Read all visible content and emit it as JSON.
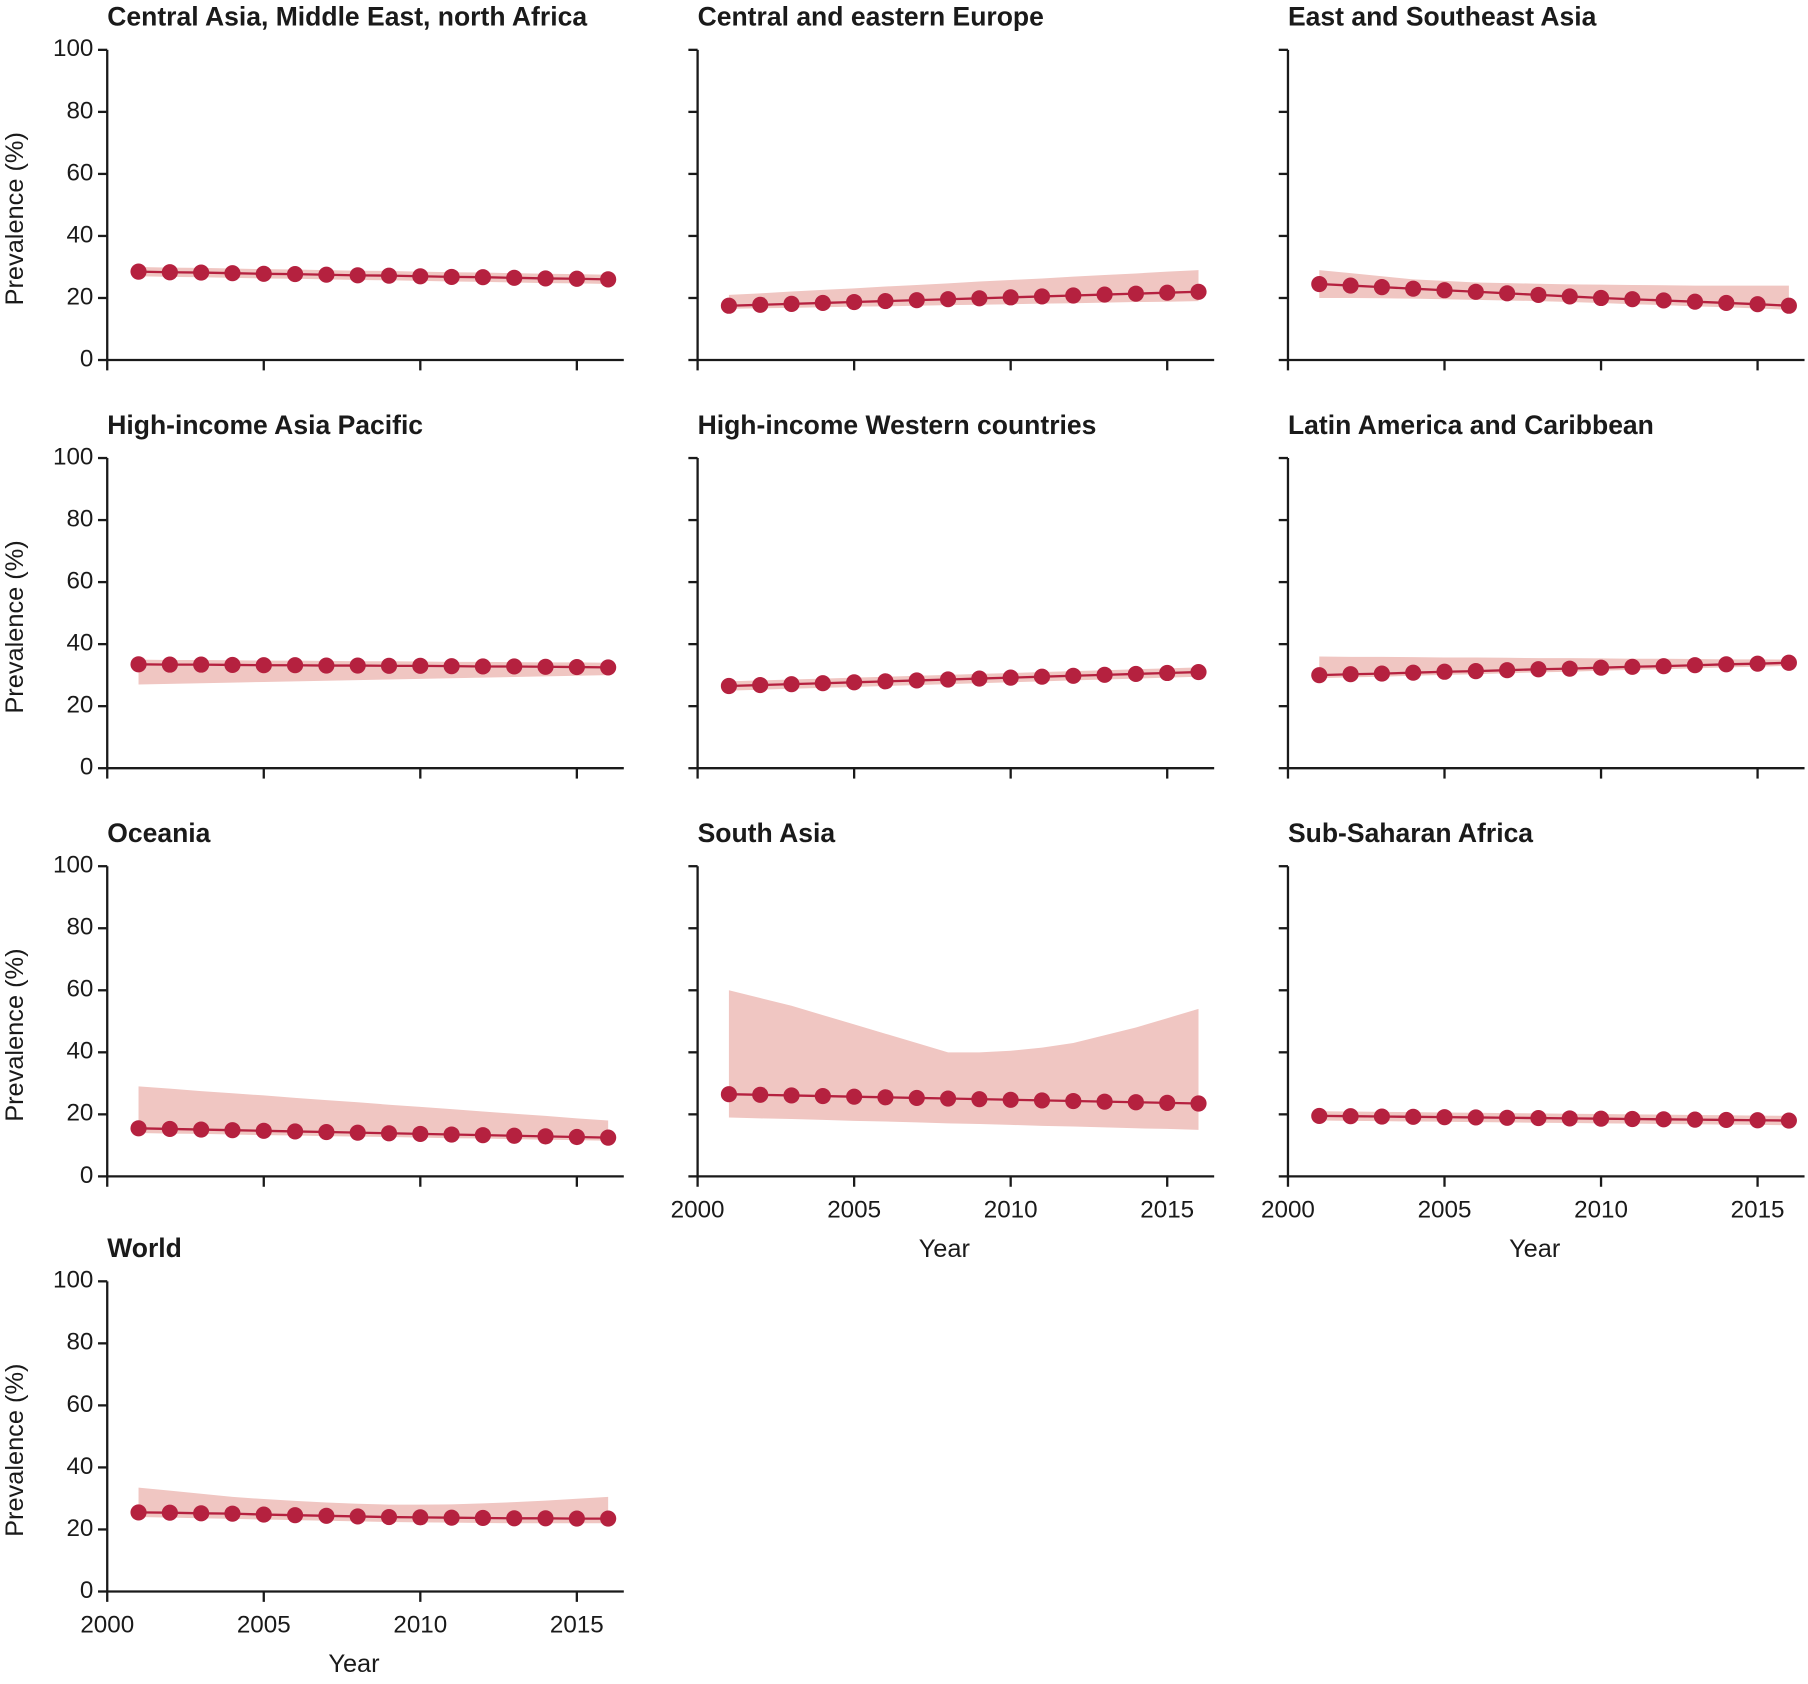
{
  "chart_data": [
    {
      "type": "line",
      "title": "Central Asia, Middle East, north Africa",
      "ylabel": "Prevalence (%)",
      "ytick_labels": true,
      "xtick_labels": false,
      "x": [
        2001,
        2002,
        2003,
        2004,
        2005,
        2006,
        2007,
        2008,
        2009,
        2010,
        2011,
        2012,
        2013,
        2014,
        2015,
        2016
      ],
      "values": [
        28.5,
        28.3,
        28.2,
        28.0,
        27.8,
        27.7,
        27.5,
        27.3,
        27.2,
        27.0,
        26.8,
        26.7,
        26.5,
        26.3,
        26.2,
        26.0
      ],
      "upper": [
        30.0,
        29.8,
        29.7,
        29.5,
        29.3,
        29.2,
        29.0,
        28.8,
        28.7,
        28.5,
        28.3,
        28.2,
        28.0,
        27.8,
        27.7,
        27.5
      ],
      "lower": [
        27.0,
        26.8,
        26.7,
        26.5,
        26.3,
        26.2,
        26.0,
        25.8,
        25.7,
        25.5,
        25.3,
        25.2,
        25.0,
        24.8,
        24.7,
        24.5
      ],
      "color": "#b5213f",
      "band_color": "#f0c6c2",
      "xlim": [
        2000,
        2016.5
      ],
      "xticks": [
        2000,
        2005,
        2010,
        2015
      ],
      "ylim": [
        0,
        100
      ],
      "yticks": [
        0,
        20,
        40,
        60,
        80,
        100
      ]
    },
    {
      "type": "line",
      "title": "Central and eastern Europe",
      "ytick_labels": false,
      "xtick_labels": false,
      "x": [
        2001,
        2002,
        2003,
        2004,
        2005,
        2006,
        2007,
        2008,
        2009,
        2010,
        2011,
        2012,
        2013,
        2014,
        2015,
        2016
      ],
      "values": [
        17.5,
        17.8,
        18.1,
        18.4,
        18.7,
        19.0,
        19.3,
        19.6,
        19.9,
        20.2,
        20.5,
        20.8,
        21.1,
        21.4,
        21.7,
        22.0
      ],
      "upper": [
        21.0,
        21.5,
        22.1,
        22.6,
        23.1,
        23.7,
        24.2,
        24.7,
        25.3,
        25.8,
        26.3,
        26.9,
        27.4,
        27.9,
        28.5,
        29.0
      ],
      "lower": [
        16.5,
        16.7,
        16.8,
        17.0,
        17.2,
        17.3,
        17.5,
        17.7,
        17.8,
        18.0,
        18.2,
        18.3,
        18.5,
        18.7,
        18.8,
        19.0
      ],
      "color": "#b5213f",
      "band_color": "#f0c6c2",
      "xlim": [
        2000,
        2016.5
      ],
      "xticks": [
        2000,
        2005,
        2010,
        2015
      ],
      "ylim": [
        0,
        100
      ],
      "yticks": [
        0,
        20,
        40,
        60,
        80,
        100
      ]
    },
    {
      "type": "line",
      "title": "East and Southeast Asia",
      "ytick_labels": false,
      "xtick_labels": false,
      "x": [
        2001,
        2002,
        2003,
        2004,
        2005,
        2006,
        2007,
        2008,
        2009,
        2010,
        2011,
        2012,
        2013,
        2014,
        2015,
        2016
      ],
      "values": [
        24.5,
        24.0,
        23.5,
        23.0,
        22.5,
        22.0,
        21.5,
        21.0,
        20.5,
        20.0,
        19.6,
        19.2,
        18.8,
        18.4,
        18.0,
        17.5
      ],
      "upper": [
        29.0,
        28.0,
        27.0,
        26.0,
        25.5,
        25.0,
        24.8,
        24.6,
        24.4,
        24.3,
        24.2,
        24.1,
        24.0,
        24.0,
        24.0,
        24.0
      ],
      "lower": [
        20.0,
        20.0,
        19.9,
        19.8,
        19.6,
        19.4,
        19.2,
        19.0,
        18.7,
        18.4,
        18.0,
        17.7,
        17.3,
        17.0,
        16.6,
        16.2
      ],
      "color": "#b5213f",
      "band_color": "#f0c6c2",
      "xlim": [
        2000,
        2016.5
      ],
      "xticks": [
        2000,
        2005,
        2010,
        2015
      ],
      "ylim": [
        0,
        100
      ],
      "yticks": [
        0,
        20,
        40,
        60,
        80,
        100
      ]
    },
    {
      "type": "line",
      "title": "High-income Asia Pacific",
      "ylabel": "Prevalence (%)",
      "ytick_labels": true,
      "xtick_labels": false,
      "x": [
        2001,
        2002,
        2003,
        2004,
        2005,
        2006,
        2007,
        2008,
        2009,
        2010,
        2011,
        2012,
        2013,
        2014,
        2015,
        2016
      ],
      "values": [
        33.5,
        33.4,
        33.4,
        33.3,
        33.2,
        33.2,
        33.1,
        33.1,
        33.0,
        33.0,
        32.9,
        32.8,
        32.8,
        32.7,
        32.6,
        32.5
      ],
      "upper": [
        35.0,
        34.9,
        34.9,
        34.8,
        34.7,
        34.7,
        34.6,
        34.5,
        34.5,
        34.4,
        34.3,
        34.3,
        34.2,
        34.1,
        34.1,
        34.0
      ],
      "lower": [
        27.0,
        27.2,
        27.4,
        27.6,
        27.8,
        28.0,
        28.2,
        28.4,
        28.6,
        28.8,
        29.0,
        29.2,
        29.4,
        29.6,
        29.8,
        30.0
      ],
      "color": "#b5213f",
      "band_color": "#f0c6c2",
      "xlim": [
        2000,
        2016.5
      ],
      "xticks": [
        2000,
        2005,
        2010,
        2015
      ],
      "ylim": [
        0,
        100
      ],
      "yticks": [
        0,
        20,
        40,
        60,
        80,
        100
      ]
    },
    {
      "type": "line",
      "title": "High-income Western countries",
      "ytick_labels": false,
      "xtick_labels": false,
      "x": [
        2001,
        2002,
        2003,
        2004,
        2005,
        2006,
        2007,
        2008,
        2009,
        2010,
        2011,
        2012,
        2013,
        2014,
        2015,
        2016
      ],
      "values": [
        26.5,
        26.8,
        27.1,
        27.4,
        27.7,
        28.0,
        28.3,
        28.6,
        28.9,
        29.2,
        29.5,
        29.8,
        30.1,
        30.4,
        30.7,
        31.0
      ],
      "upper": [
        28.0,
        28.3,
        28.6,
        28.9,
        29.2,
        29.5,
        29.8,
        30.1,
        30.4,
        30.7,
        31.0,
        31.3,
        31.6,
        31.9,
        32.2,
        32.5
      ],
      "lower": [
        25.0,
        25.3,
        25.6,
        25.9,
        26.2,
        26.5,
        26.8,
        27.1,
        27.4,
        27.7,
        28.0,
        28.3,
        28.6,
        28.9,
        29.2,
        29.5
      ],
      "color": "#b5213f",
      "band_color": "#f0c6c2",
      "xlim": [
        2000,
        2016.5
      ],
      "xticks": [
        2000,
        2005,
        2010,
        2015
      ],
      "ylim": [
        0,
        100
      ],
      "yticks": [
        0,
        20,
        40,
        60,
        80,
        100
      ]
    },
    {
      "type": "line",
      "title": "Latin America and Caribbean",
      "ytick_labels": false,
      "xtick_labels": false,
      "x": [
        2001,
        2002,
        2003,
        2004,
        2005,
        2006,
        2007,
        2008,
        2009,
        2010,
        2011,
        2012,
        2013,
        2014,
        2015,
        2016
      ],
      "values": [
        30.0,
        30.3,
        30.5,
        30.8,
        31.1,
        31.3,
        31.6,
        31.9,
        32.1,
        32.4,
        32.7,
        32.9,
        33.2,
        33.5,
        33.7,
        34.0
      ],
      "upper": [
        36.0,
        35.9,
        35.9,
        35.8,
        35.7,
        35.7,
        35.6,
        35.5,
        35.5,
        35.4,
        35.3,
        35.3,
        35.2,
        35.1,
        35.1,
        35.0
      ],
      "lower": [
        29.0,
        29.3,
        29.5,
        29.8,
        30.1,
        30.3,
        30.6,
        30.9,
        31.1,
        31.4,
        31.7,
        31.9,
        32.2,
        32.5,
        32.7,
        33.0
      ],
      "color": "#b5213f",
      "band_color": "#f0c6c2",
      "xlim": [
        2000,
        2016.5
      ],
      "xticks": [
        2000,
        2005,
        2010,
        2015
      ],
      "ylim": [
        0,
        100
      ],
      "yticks": [
        0,
        20,
        40,
        60,
        80,
        100
      ]
    },
    {
      "type": "line",
      "title": "Oceania",
      "ylabel": "Prevalence (%)",
      "ytick_labels": true,
      "xtick_labels": false,
      "x": [
        2001,
        2002,
        2003,
        2004,
        2005,
        2006,
        2007,
        2008,
        2009,
        2010,
        2011,
        2012,
        2013,
        2014,
        2015,
        2016
      ],
      "values": [
        15.5,
        15.3,
        15.1,
        14.9,
        14.7,
        14.5,
        14.3,
        14.1,
        13.9,
        13.7,
        13.5,
        13.3,
        13.1,
        12.9,
        12.7,
        12.5
      ],
      "upper": [
        29.0,
        28.3,
        27.5,
        26.8,
        26.1,
        25.3,
        24.6,
        23.9,
        23.1,
        22.4,
        21.7,
        20.9,
        20.2,
        19.5,
        18.7,
        18.0
      ],
      "lower": [
        14.0,
        13.8,
        13.7,
        13.5,
        13.3,
        13.2,
        13.0,
        12.8,
        12.7,
        12.5,
        12.3,
        12.2,
        12.0,
        11.8,
        11.7,
        11.5
      ],
      "color": "#b5213f",
      "band_color": "#f0c6c2",
      "xlim": [
        2000,
        2016.5
      ],
      "xticks": [
        2000,
        2005,
        2010,
        2015
      ],
      "ylim": [
        0,
        100
      ],
      "yticks": [
        0,
        20,
        40,
        60,
        80,
        100
      ]
    },
    {
      "type": "line",
      "title": "South Asia",
      "xlabel": "Year",
      "ytick_labels": false,
      "xtick_labels": true,
      "x": [
        2001,
        2002,
        2003,
        2004,
        2005,
        2006,
        2007,
        2008,
        2009,
        2010,
        2011,
        2012,
        2013,
        2014,
        2015,
        2016
      ],
      "values": [
        26.5,
        26.3,
        26.1,
        25.9,
        25.7,
        25.5,
        25.3,
        25.1,
        24.9,
        24.7,
        24.5,
        24.3,
        24.1,
        23.9,
        23.7,
        23.5
      ],
      "upper": [
        60.0,
        57.5,
        55.0,
        52.0,
        49.0,
        46.0,
        43.0,
        40.0,
        40.0,
        40.5,
        41.5,
        43.0,
        45.5,
        48.0,
        51.0,
        54.0
      ],
      "lower": [
        19.0,
        18.7,
        18.5,
        18.2,
        17.9,
        17.7,
        17.4,
        17.1,
        16.9,
        16.6,
        16.3,
        16.1,
        15.8,
        15.5,
        15.3,
        15.0
      ],
      "color": "#b5213f",
      "band_color": "#f0c6c2",
      "xlim": [
        2000,
        2016.5
      ],
      "xticks": [
        2000,
        2005,
        2010,
        2015
      ],
      "ylim": [
        0,
        100
      ],
      "yticks": [
        0,
        20,
        40,
        60,
        80,
        100
      ]
    },
    {
      "type": "line",
      "title": "Sub-Saharan Africa",
      "xlabel": "Year",
      "ytick_labels": false,
      "xtick_labels": true,
      "x": [
        2001,
        2002,
        2003,
        2004,
        2005,
        2006,
        2007,
        2008,
        2009,
        2010,
        2011,
        2012,
        2013,
        2014,
        2015,
        2016
      ],
      "values": [
        19.5,
        19.4,
        19.3,
        19.2,
        19.1,
        19.0,
        18.9,
        18.8,
        18.7,
        18.6,
        18.5,
        18.4,
        18.3,
        18.2,
        18.1,
        18.0
      ],
      "upper": [
        21.0,
        20.9,
        20.8,
        20.7,
        20.6,
        20.5,
        20.4,
        20.3,
        20.2,
        20.1,
        20.0,
        19.9,
        19.8,
        19.7,
        19.6,
        19.5
      ],
      "lower": [
        18.0,
        17.9,
        17.8,
        17.7,
        17.6,
        17.5,
        17.4,
        17.3,
        17.2,
        17.1,
        17.0,
        16.9,
        16.8,
        16.7,
        16.6,
        16.5
      ],
      "color": "#b5213f",
      "band_color": "#f0c6c2",
      "xlim": [
        2000,
        2016.5
      ],
      "xticks": [
        2000,
        2005,
        2010,
        2015
      ],
      "ylim": [
        0,
        100
      ],
      "yticks": [
        0,
        20,
        40,
        60,
        80,
        100
      ]
    },
    {
      "type": "line",
      "title": "World",
      "ylabel": "Prevalence (%)",
      "xlabel": "Year",
      "ytick_labels": true,
      "xtick_labels": true,
      "x": [
        2001,
        2002,
        2003,
        2004,
        2005,
        2006,
        2007,
        2008,
        2009,
        2010,
        2011,
        2012,
        2013,
        2014,
        2015,
        2016
      ],
      "values": [
        25.5,
        25.4,
        25.2,
        25.1,
        24.8,
        24.6,
        24.4,
        24.2,
        24.0,
        23.9,
        23.8,
        23.7,
        23.6,
        23.6,
        23.5,
        23.5
      ],
      "upper": [
        33.5,
        32.5,
        31.5,
        30.5,
        29.8,
        29.2,
        28.7,
        28.3,
        28.0,
        28.0,
        28.1,
        28.4,
        28.8,
        29.3,
        29.9,
        30.5
      ],
      "lower": [
        24.0,
        23.8,
        23.6,
        23.4,
        23.2,
        23.0,
        22.8,
        22.6,
        22.4,
        22.3,
        22.2,
        22.1,
        22.0,
        22.0,
        22.0,
        22.0
      ],
      "color": "#b5213f",
      "band_color": "#f0c6c2",
      "xlim": [
        2000,
        2016.5
      ],
      "xticks": [
        2000,
        2005,
        2010,
        2015
      ],
      "ylim": [
        0,
        100
      ],
      "yticks": [
        0,
        20,
        40,
        60,
        80,
        100
      ]
    }
  ]
}
